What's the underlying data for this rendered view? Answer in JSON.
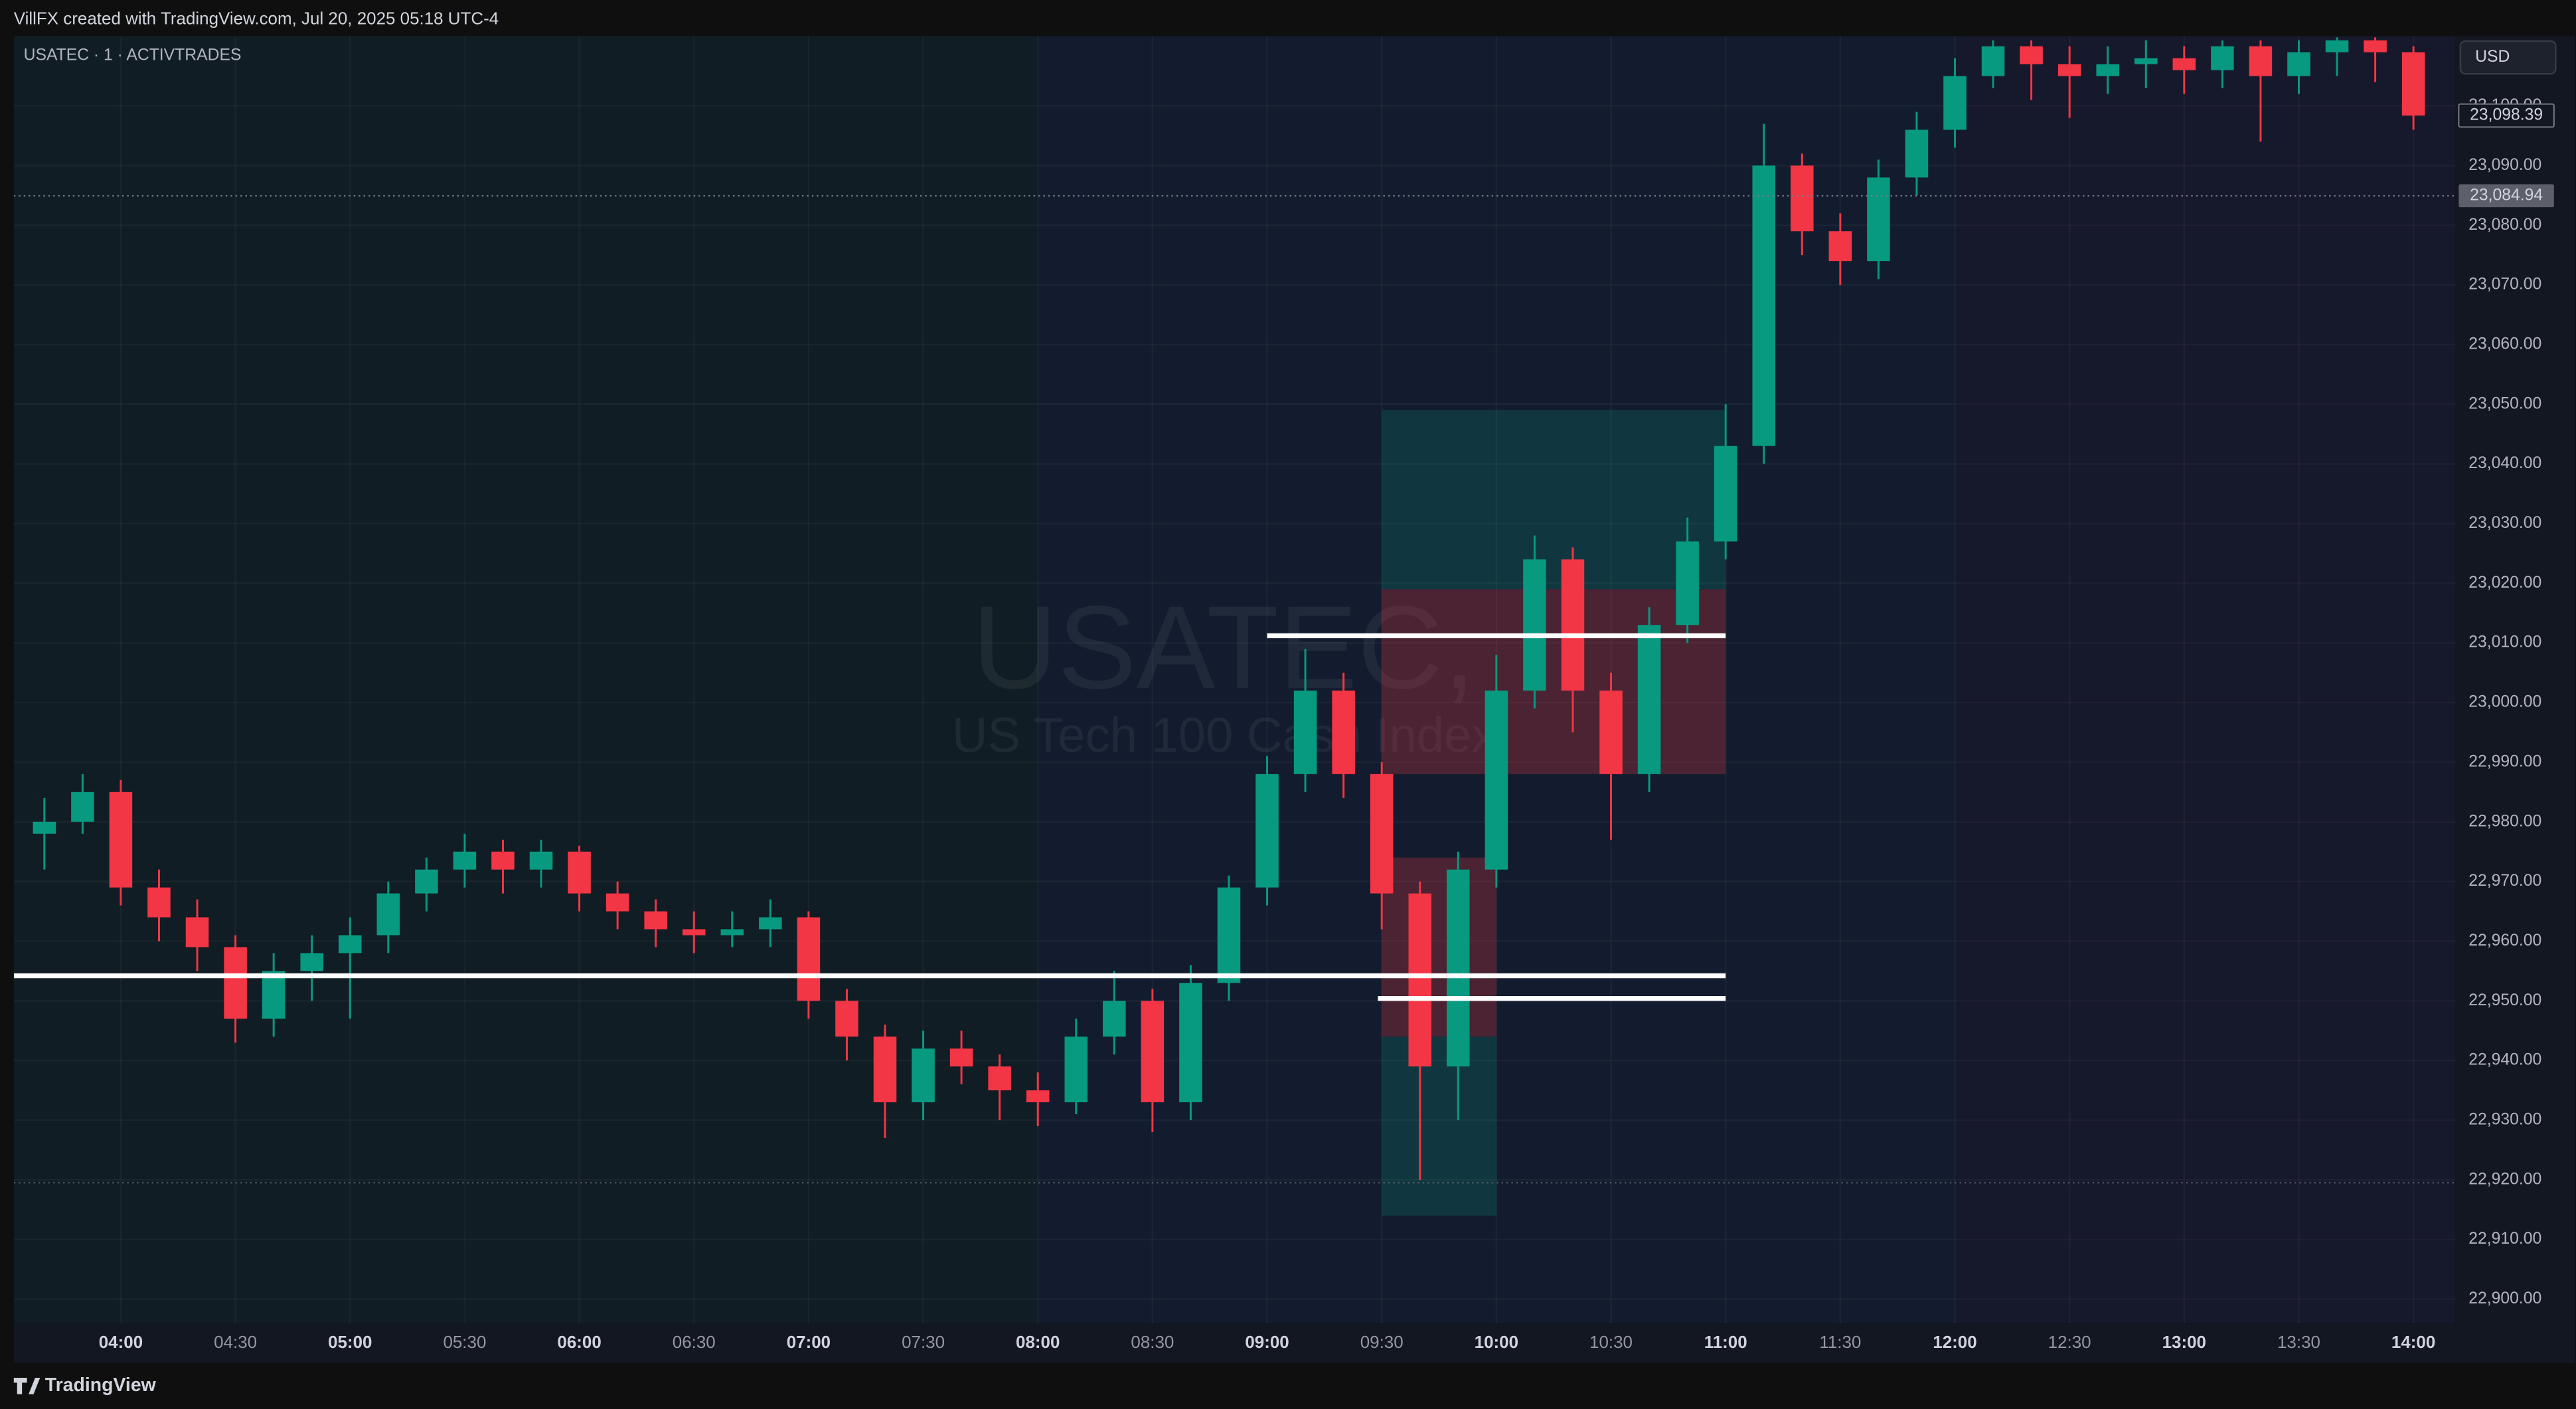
{
  "chart_data": {
    "type": "candlestick",
    "header": "VillFX created with TradingView.com, Jul 20, 2025 05:18 UTC-4",
    "symbol": "USATEC · 1 · ACTIVTRADES",
    "currency": "USD",
    "watermark_title": "USATEC,",
    "watermark_subtitle": "US Tech 100 Cash Index",
    "brand": "TradingView",
    "up_color": "#089981",
    "down_color": "#f23645",
    "x": [
      "03:40",
      "03:50",
      "04:00",
      "04:10",
      "04:20",
      "04:30",
      "04:40",
      "04:50",
      "05:00",
      "05:10",
      "05:20",
      "05:30",
      "05:40",
      "05:50",
      "06:00",
      "06:10",
      "06:20",
      "06:30",
      "06:40",
      "06:50",
      "07:00",
      "07:10",
      "07:20",
      "07:30",
      "07:40",
      "07:50",
      "08:00",
      "08:10",
      "08:20",
      "08:30",
      "08:40",
      "08:50",
      "09:00",
      "09:10",
      "09:20",
      "09:30",
      "09:40",
      "09:50",
      "10:00",
      "10:10",
      "10:20",
      "10:30",
      "10:40",
      "10:50",
      "11:00",
      "11:10",
      "11:20",
      "11:30",
      "11:40",
      "11:50",
      "12:00",
      "12:10",
      "12:20",
      "12:30",
      "12:40",
      "12:50",
      "13:00",
      "13:10",
      "13:20",
      "13:30",
      "13:40",
      "13:50",
      "14:00"
    ],
    "open": [
      22978,
      22980,
      22985,
      22969,
      22964,
      22959,
      22947,
      22955,
      22958,
      22961,
      22968,
      22972,
      22975,
      22972,
      22975,
      22968,
      22965,
      22962,
      22961,
      22962,
      22964,
      22950,
      22944,
      22933,
      22942,
      22939,
      22935,
      22933,
      22944,
      22950,
      22933,
      22953,
      22969,
      22988,
      23002,
      22988,
      22968,
      22939,
      22972,
      23002,
      23024,
      23002,
      22988,
      23013,
      23027,
      23043,
      23090,
      23079,
      23074,
      23088,
      23096,
      23105,
      23110,
      23107,
      23105,
      23107,
      23108,
      23106,
      23110,
      23105,
      23109,
      23111,
      23109
    ],
    "high": [
      22984,
      22988,
      22987,
      22972,
      22967,
      22961,
      22958,
      22961,
      22964,
      22970,
      22974,
      22978,
      22977,
      22977,
      22976,
      22970,
      22967,
      22965,
      22965,
      22967,
      22965,
      22952,
      22946,
      22945,
      22945,
      22941,
      22938,
      22947,
      22955,
      22952,
      22956,
      22971,
      22991,
      23009,
      23005,
      22990,
      22970,
      22975,
      23008,
      23028,
      23026,
      23005,
      23016,
      23031,
      23050,
      23097,
      23092,
      23082,
      23091,
      23099,
      23108,
      23111,
      23111,
      23110,
      23110,
      23111,
      23110,
      23111,
      23111,
      23111,
      23111.5,
      23111.5,
      23110
    ],
    "low": [
      22972,
      22978,
      22966,
      22960,
      22955,
      22943,
      22944,
      22950,
      22947,
      22958,
      22965,
      22969,
      22968,
      22969,
      22965,
      22962,
      22959,
      22958,
      22959,
      22959,
      22947,
      22940,
      22927,
      22930,
      22936,
      22930,
      22929,
      22931,
      22941,
      22928,
      22930,
      22950,
      22966,
      22985,
      22984,
      22962,
      22920,
      22930,
      22969,
      22999,
      22995,
      22977,
      22985,
      23010,
      23024,
      23040,
      23075,
      23070,
      23071,
      23085,
      23093,
      23103,
      23101,
      23098,
      23102,
      23103,
      23102,
      23103,
      23094,
      23102,
      23105,
      23104,
      23096
    ],
    "close": [
      22980,
      22985,
      22969,
      22964,
      22959,
      22947,
      22955,
      22958,
      22961,
      22968,
      22972,
      22975,
      22972,
      22975,
      22968,
      22965,
      22962,
      22961,
      22962,
      22964,
      22950,
      22944,
      22933,
      22942,
      22939,
      22935,
      22933,
      22944,
      22950,
      22933,
      22953,
      22969,
      22988,
      23002,
      22988,
      22968,
      22939,
      22972,
      23002,
      23024,
      23002,
      22988,
      23013,
      23027,
      23043,
      23090,
      23079,
      23074,
      23088,
      23096,
      23105,
      23110,
      23107,
      23105,
      23107,
      23108,
      23106,
      23110,
      23105,
      23109,
      23111,
      23109,
      23098.39
    ],
    "xlim": [
      "03:32",
      "14:11"
    ],
    "xticks": [
      "04:00",
      "04:30",
      "05:00",
      "05:30",
      "06:00",
      "06:30",
      "07:00",
      "07:30",
      "08:00",
      "08:30",
      "09:00",
      "09:30",
      "10:00",
      "10:30",
      "11:00",
      "11:30",
      "12:00",
      "12:30",
      "13:00",
      "13:30",
      "14:00"
    ],
    "ylim": [
      22895.9,
      23111.7
    ],
    "yticks": [
      {
        "value": 22900,
        "label": "22,900.00"
      },
      {
        "value": 22910,
        "label": "22,910.00"
      },
      {
        "value": 22920,
        "label": "22,920.00"
      },
      {
        "value": 22930,
        "label": "22,930.00"
      },
      {
        "value": 22940,
        "label": "22,940.00"
      },
      {
        "value": 22950,
        "label": "22,950.00"
      },
      {
        "value": 22960,
        "label": "22,960.00"
      },
      {
        "value": 22970,
        "label": "22,970.00"
      },
      {
        "value": 22980,
        "label": "22,980.00"
      },
      {
        "value": 22990,
        "label": "22,990.00"
      },
      {
        "value": 23000,
        "label": "23,000.00"
      },
      {
        "value": 23010,
        "label": "23,010.00"
      },
      {
        "value": 23020,
        "label": "23,020.00"
      },
      {
        "value": 23030,
        "label": "23,030.00"
      },
      {
        "value": 23040,
        "label": "23,040.00"
      },
      {
        "value": 23050,
        "label": "23,050.00"
      },
      {
        "value": 23060,
        "label": "23,060.00"
      },
      {
        "value": 23070,
        "label": "23,070.00"
      },
      {
        "value": 23080,
        "label": "23,080.00"
      },
      {
        "value": 23090,
        "label": "23,090.00"
      },
      {
        "value": 23100,
        "label": "23,100.00"
      }
    ],
    "price_lines": [
      {
        "value": 23098.39,
        "label": "23,098.39"
      },
      {
        "value": 23084.94,
        "label": "23,084.94"
      }
    ],
    "dotted_lines": [
      22919.5
    ],
    "sessions": [
      {
        "from": "03:32",
        "to": "08:00",
        "color": "#111d24"
      },
      {
        "from": "08:00",
        "to": "12:00",
        "color": "#131c2e"
      },
      {
        "from": "12:00",
        "to": "14:11",
        "color": "#16182b"
      }
    ],
    "levels": [
      {
        "value": 22954.2,
        "from": "03:32",
        "to": "11:00"
      },
      {
        "value": 23011.2,
        "from": "09:00",
        "to": "11:00"
      },
      {
        "value": 22950.4,
        "from": "09:29",
        "to": "11:00"
      }
    ],
    "positions": [
      {
        "from": "09:30",
        "to": "11:00",
        "entry": 23019,
        "target": 23049,
        "stop": 22988
      },
      {
        "from": "09:30",
        "to": "10:00",
        "entry": 22944,
        "target": 22914,
        "stop": 22974
      }
    ]
  }
}
